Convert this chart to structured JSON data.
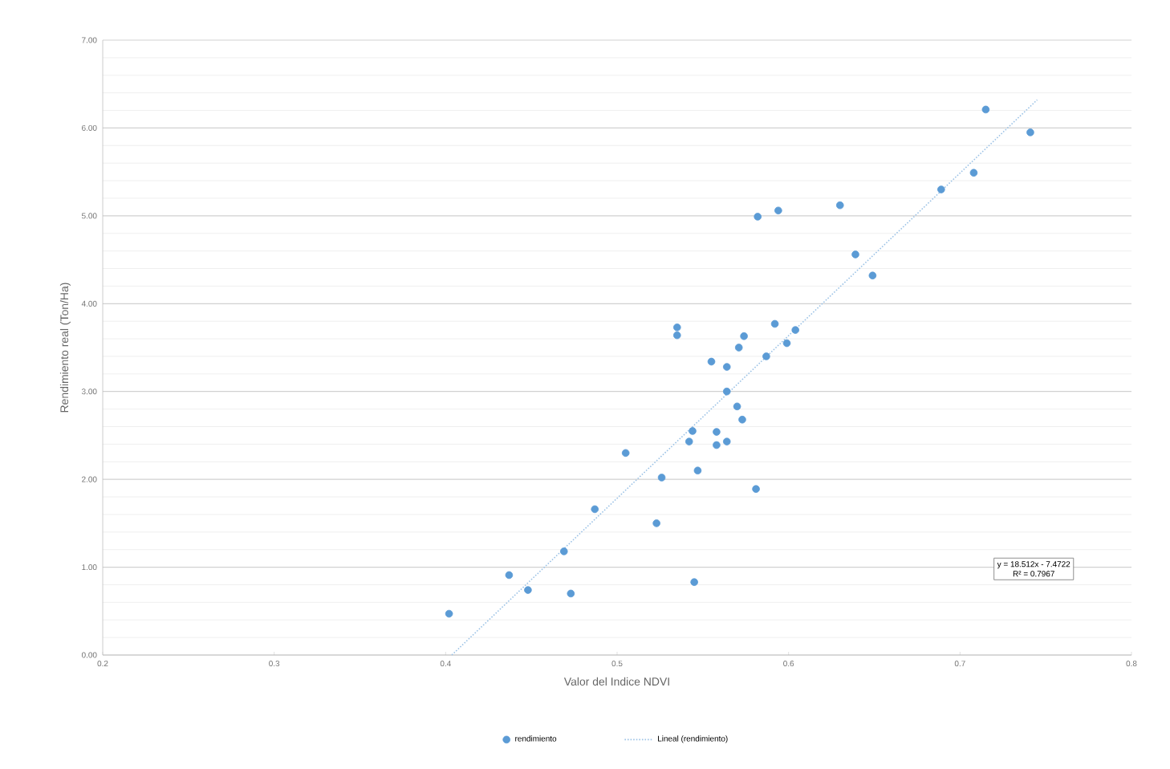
{
  "chart_data": {
    "type": "scatter",
    "xlabel": "Valor del Indice NDVI",
    "ylabel": "Rendimiento real (Ton/Ha)",
    "xlim": [
      0.2,
      0.8
    ],
    "xticks": [
      0.2,
      0.3,
      0.4,
      0.5,
      0.6,
      0.7,
      0.8
    ],
    "ylim": [
      0,
      7
    ],
    "yticks": [
      {
        "value": 0,
        "label": "0.00"
      },
      {
        "value": 1,
        "label": "1.00"
      },
      {
        "value": 2,
        "label": "2.00"
      },
      {
        "value": 3,
        "label": "3.00"
      },
      {
        "value": 4,
        "label": "4.00"
      },
      {
        "value": 5,
        "label": "5.00"
      },
      {
        "value": 6,
        "label": "6.00"
      },
      {
        "value": 7,
        "label": "7.00"
      }
    ],
    "grid": "y",
    "legend": "bottom",
    "marker": "circle",
    "annotations": [
      "y = 18.512x - 7.4722",
      "R² = 0.7967"
    ],
    "series": [
      {
        "name": "rendimiento",
        "color": "#5b9bd5",
        "x": [
          0.402,
          0.437,
          0.448,
          0.473,
          0.469,
          0.487,
          0.505,
          0.523,
          0.526,
          0.545,
          0.547,
          0.544,
          0.542,
          0.535,
          0.535,
          0.555,
          0.564,
          0.564,
          0.57,
          0.573,
          0.558,
          0.558,
          0.564,
          0.581,
          0.571,
          0.574,
          0.587,
          0.592,
          0.599,
          0.604,
          0.582,
          0.594,
          0.715,
          0.741,
          0.708,
          0.689,
          0.63,
          0.639,
          0.649
        ],
        "values": [
          0.47,
          0.91,
          0.74,
          0.7,
          1.18,
          1.66,
          2.3,
          1.5,
          2.02,
          0.83,
          2.1,
          2.55,
          2.43,
          3.73,
          3.64,
          3.34,
          3.28,
          3.0,
          2.83,
          2.68,
          2.54,
          2.39,
          2.43,
          1.89,
          3.5,
          3.63,
          3.4,
          3.77,
          3.55,
          3.7,
          4.99,
          5.06,
          6.21,
          5.95,
          5.49,
          5.3,
          5.12,
          4.56,
          4.32
        ]
      },
      {
        "name": "Lineal (rendimiento)",
        "type": "line",
        "color": "#9dc3e6",
        "line_style": "dotted",
        "marker": "none",
        "x": [
          0.4036,
          0.745
        ],
        "values": [
          0.0,
          6.32
        ]
      }
    ]
  }
}
